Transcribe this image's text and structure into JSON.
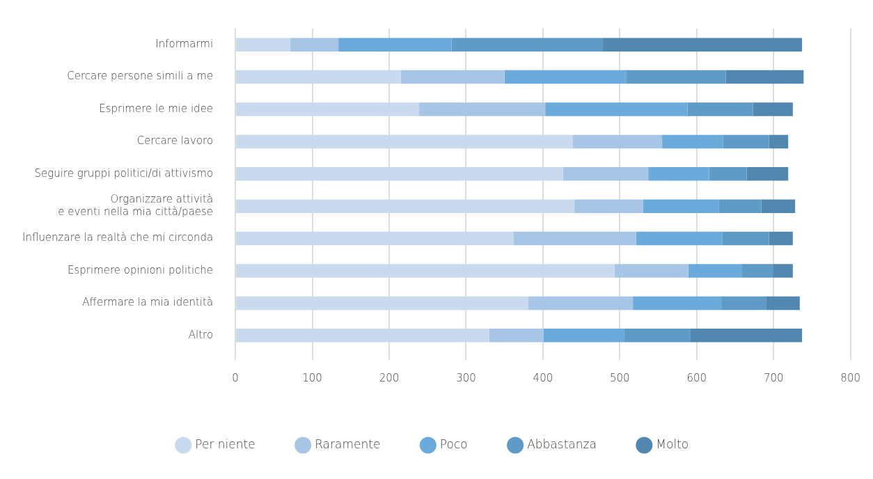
{
  "chart_data": {
    "type": "bar",
    "orientation": "horizontal",
    "stacked": true,
    "categories": [
      "Informarmi",
      "Cercare persone simili a me",
      "Esprimere le mie idee",
      "Cercare lavoro",
      "Seguire gruppi politici/di attivismo",
      "Organizzare attività\ne eventi nella mia città/paese",
      "Influenzare la realtà che mi circonda",
      "Esprimere opinioni politiche",
      "Affermare la mia identità",
      "Altro"
    ],
    "series": [
      {
        "name": "Per niente",
        "color": "#c9d9ee",
        "values": [
          71,
          215,
          239,
          439,
          426,
          441,
          362,
          493,
          381,
          330
        ]
      },
      {
        "name": "Raramente",
        "color": "#a7c5e5",
        "values": [
          63,
          135,
          164,
          116,
          111,
          89,
          159,
          96,
          136,
          71
        ]
      },
      {
        "name": "Poco",
        "color": "#6aabdc",
        "values": [
          147,
          158,
          185,
          79,
          79,
          99,
          112,
          70,
          115,
          105
        ]
      },
      {
        "name": "Abbastanza",
        "color": "#5f9bc7",
        "values": [
          197,
          130,
          85,
          60,
          49,
          55,
          61,
          40,
          58,
          86
        ]
      },
      {
        "name": "Molto",
        "color": "#5287b0",
        "values": [
          259,
          101,
          52,
          25,
          54,
          44,
          31,
          26,
          44,
          145
        ]
      }
    ],
    "xlim": [
      0,
      800
    ],
    "xticks": [
      0,
      100,
      200,
      300,
      400,
      500,
      600,
      700,
      800
    ],
    "grid": "x",
    "legend": "bottom"
  }
}
